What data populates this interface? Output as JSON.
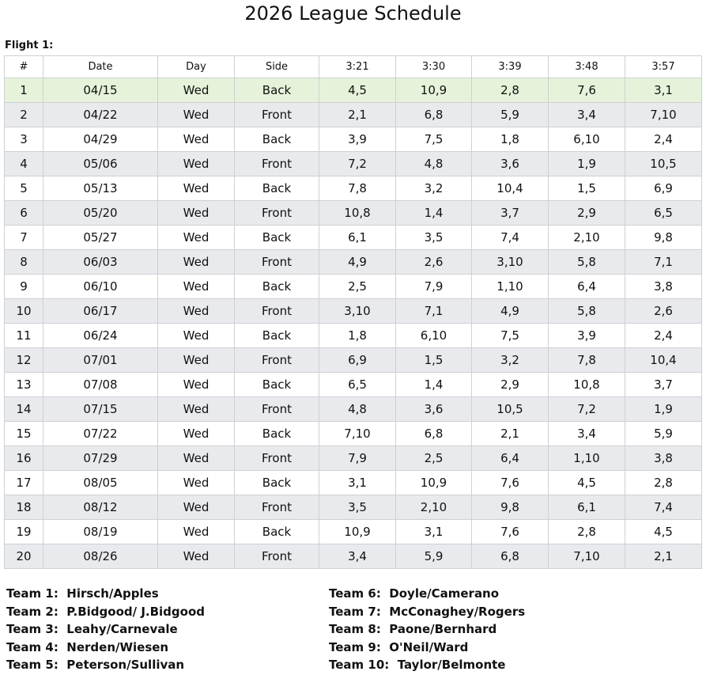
{
  "header": {
    "title": "2026 League Schedule",
    "flight": "Flight 1:"
  },
  "table": {
    "columns": [
      "#",
      "Date",
      "Day",
      "Side",
      "3:21",
      "3:30",
      "3:39",
      "3:48",
      "3:57"
    ],
    "rows": [
      [
        1,
        "04/15",
        "Wed",
        "Back",
        "4,5",
        "10,9",
        "2,8",
        "7,6",
        "3,1"
      ],
      [
        2,
        "04/22",
        "Wed",
        "Front",
        "2,1",
        "6,8",
        "5,9",
        "3,4",
        "7,10"
      ],
      [
        3,
        "04/29",
        "Wed",
        "Back",
        "3,9",
        "7,5",
        "1,8",
        "6,10",
        "2,4"
      ],
      [
        4,
        "05/06",
        "Wed",
        "Front",
        "7,2",
        "4,8",
        "3,6",
        "1,9",
        "10,5"
      ],
      [
        5,
        "05/13",
        "Wed",
        "Back",
        "7,8",
        "3,2",
        "10,4",
        "1,5",
        "6,9"
      ],
      [
        6,
        "05/20",
        "Wed",
        "Front",
        "10,8",
        "1,4",
        "3,7",
        "2,9",
        "6,5"
      ],
      [
        7,
        "05/27",
        "Wed",
        "Back",
        "6,1",
        "3,5",
        "7,4",
        "2,10",
        "9,8"
      ],
      [
        8,
        "06/03",
        "Wed",
        "Front",
        "4,9",
        "2,6",
        "3,10",
        "5,8",
        "7,1"
      ],
      [
        9,
        "06/10",
        "Wed",
        "Back",
        "2,5",
        "7,9",
        "1,10",
        "6,4",
        "3,8"
      ],
      [
        10,
        "06/17",
        "Wed",
        "Front",
        "3,10",
        "7,1",
        "4,9",
        "5,8",
        "2,6"
      ],
      [
        11,
        "06/24",
        "Wed",
        "Back",
        "1,8",
        "6,10",
        "7,5",
        "3,9",
        "2,4"
      ],
      [
        12,
        "07/01",
        "Wed",
        "Front",
        "6,9",
        "1,5",
        "3,2",
        "7,8",
        "10,4"
      ],
      [
        13,
        "07/08",
        "Wed",
        "Back",
        "6,5",
        "1,4",
        "2,9",
        "10,8",
        "3,7"
      ],
      [
        14,
        "07/15",
        "Wed",
        "Front",
        "4,8",
        "3,6",
        "10,5",
        "7,2",
        "1,9"
      ],
      [
        15,
        "07/22",
        "Wed",
        "Back",
        "7,10",
        "6,8",
        "2,1",
        "3,4",
        "5,9"
      ],
      [
        16,
        "07/29",
        "Wed",
        "Front",
        "7,9",
        "2,5",
        "6,4",
        "1,10",
        "3,8"
      ],
      [
        17,
        "08/05",
        "Wed",
        "Back",
        "3,1",
        "10,9",
        "7,6",
        "4,5",
        "2,8"
      ],
      [
        18,
        "08/12",
        "Wed",
        "Front",
        "3,5",
        "2,10",
        "9,8",
        "6,1",
        "7,4"
      ],
      [
        19,
        "08/19",
        "Wed",
        "Back",
        "10,9",
        "3,1",
        "7,6",
        "2,8",
        "4,5"
      ],
      [
        20,
        "08/26",
        "Wed",
        "Front",
        "3,4",
        "5,9",
        "6,8",
        "7,10",
        "2,1"
      ]
    ]
  },
  "teams": [
    {
      "label": "Team 1:",
      "name": "Hirsch/Apples"
    },
    {
      "label": "Team 2:",
      "name": "P.Bidgood/ J.Bidgood"
    },
    {
      "label": "Team 3:",
      "name": "Leahy/Carnevale"
    },
    {
      "label": "Team 4:",
      "name": "Nerden/Wiesen"
    },
    {
      "label": "Team 5:",
      "name": "Peterson/Sullivan"
    },
    {
      "label": "Team 6:",
      "name": "Doyle/Camerano"
    },
    {
      "label": "Team 7:",
      "name": "McConaghey/Rogers"
    },
    {
      "label": "Team 8:",
      "name": "Paone/Bernhard"
    },
    {
      "label": "Team 9:",
      "name": "O'Neil/Ward"
    },
    {
      "label": "Team 10:",
      "name": "Taylor/Belmonte"
    }
  ]
}
